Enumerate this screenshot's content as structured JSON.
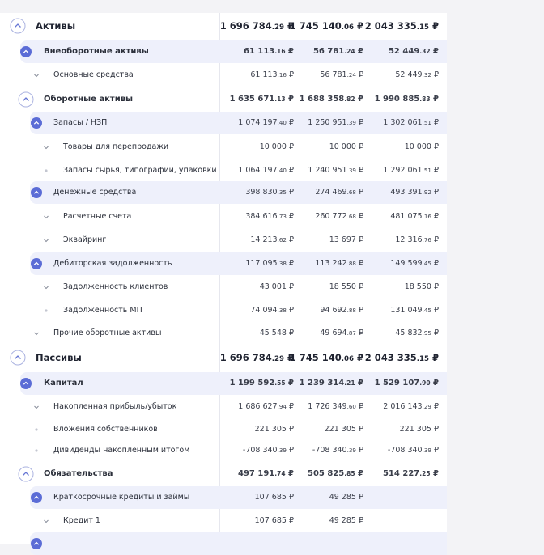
{
  "table": {
    "rows": [
      {
        "label": "Активы",
        "level": 0,
        "icon": "open",
        "highlight": false,
        "values": [
          "1 696 784.29 ₽",
          "1 745 140.06 ₽",
          "2 043 335.15 ₽"
        ]
      },
      {
        "label": "Внеоборотные активы",
        "level": 1,
        "icon": "filled",
        "highlight": true,
        "values": [
          "61 113.16 ₽",
          "56 781.24 ₽",
          "52 449.32 ₽"
        ]
      },
      {
        "label": "Основные средства",
        "level": 2,
        "icon": "chevron",
        "highlight": false,
        "values": [
          "61 113.16 ₽",
          "56 781.24 ₽",
          "52 449.32 ₽"
        ]
      },
      {
        "label": "Оборотные активы",
        "level": 1,
        "icon": "open",
        "highlight": false,
        "values": [
          "1 635 671.13 ₽",
          "1 688 358.82 ₽",
          "1 990 885.83 ₽"
        ]
      },
      {
        "label": "Запасы / НЗП",
        "level": 2,
        "icon": "filled",
        "highlight": true,
        "values": [
          "1 074 197.40 ₽",
          "1 250 951.39 ₽",
          "1 302 061.51 ₽"
        ]
      },
      {
        "label": "Товары для перепродажи",
        "level": 3,
        "icon": "chevron",
        "highlight": false,
        "values": [
          "10 000 ₽",
          "10 000 ₽",
          "10 000 ₽"
        ]
      },
      {
        "label": "Запасы сырья, типографии, упаковки",
        "level": 3,
        "icon": "dot",
        "highlight": false,
        "values": [
          "1 064 197.40 ₽",
          "1 240 951.39 ₽",
          "1 292 061.51 ₽"
        ]
      },
      {
        "label": "Денежные средства",
        "level": 2,
        "icon": "filled",
        "highlight": true,
        "values": [
          "398 830.35 ₽",
          "274 469.68 ₽",
          "493 391.92 ₽"
        ]
      },
      {
        "label": "Расчетные счета",
        "level": 3,
        "icon": "chevron",
        "highlight": false,
        "values": [
          "384 616.73 ₽",
          "260 772.68 ₽",
          "481 075.16 ₽"
        ]
      },
      {
        "label": "Эквайринг",
        "level": 3,
        "icon": "chevron",
        "highlight": false,
        "values": [
          "14 213.62 ₽",
          "13 697 ₽",
          "12 316.76 ₽"
        ]
      },
      {
        "label": "Дебиторская задолженность",
        "level": 2,
        "icon": "filled",
        "highlight": true,
        "values": [
          "117 095.38 ₽",
          "113 242.88 ₽",
          "149 599.45 ₽"
        ]
      },
      {
        "label": "Задолженность клиентов",
        "level": 3,
        "icon": "chevron",
        "highlight": false,
        "values": [
          "43 001 ₽",
          "18 550 ₽",
          "18 550 ₽"
        ]
      },
      {
        "label": "Задолженность МП",
        "level": 3,
        "icon": "dot",
        "highlight": false,
        "values": [
          "74 094.38 ₽",
          "94 692.88 ₽",
          "131 049.45 ₽"
        ]
      },
      {
        "label": "Прочие оборотные активы",
        "level": 2,
        "icon": "chevron",
        "highlight": false,
        "values": [
          "45 548 ₽",
          "49 694.87 ₽",
          "45 832.95 ₽"
        ]
      },
      {
        "label": "Пассивы",
        "level": 0,
        "icon": "open",
        "highlight": false,
        "values": [
          "1 696 784.29 ₽",
          "1 745 140.06 ₽",
          "2 043 335.15 ₽"
        ]
      },
      {
        "label": "Капитал",
        "level": 1,
        "icon": "filled",
        "highlight": true,
        "values": [
          "1 199 592.55 ₽",
          "1 239 314.21 ₽",
          "1 529 107.90 ₽"
        ]
      },
      {
        "label": "Накопленная прибыль/убыток",
        "level": 2,
        "icon": "chevron",
        "highlight": false,
        "values": [
          "1 686 627.94 ₽",
          "1 726 349.60 ₽",
          "2 016 143.29 ₽"
        ]
      },
      {
        "label": "Вложения собственников",
        "level": 2,
        "icon": "dot",
        "highlight": false,
        "values": [
          "221 305 ₽",
          "221 305 ₽",
          "221 305 ₽"
        ]
      },
      {
        "label": "Дивиденды накопленным итогом",
        "level": 2,
        "icon": "dot",
        "highlight": false,
        "values": [
          "-708 340.39 ₽",
          "-708 340.39 ₽",
          "-708 340.39 ₽"
        ]
      },
      {
        "label": "Обязательства",
        "level": 1,
        "icon": "open",
        "highlight": false,
        "values": [
          "497 191.74 ₽",
          "505 825.85 ₽",
          "514 227.25 ₽"
        ]
      },
      {
        "label": "Краткосрочные кредиты и займы",
        "level": 2,
        "icon": "filled",
        "highlight": true,
        "values": [
          "107 685 ₽",
          "49 285 ₽",
          null
        ]
      },
      {
        "label": "Кредит 1",
        "level": 3,
        "icon": "chevron",
        "highlight": false,
        "values": [
          "107 685 ₽",
          "49 285 ₽",
          null
        ]
      }
    ]
  }
}
